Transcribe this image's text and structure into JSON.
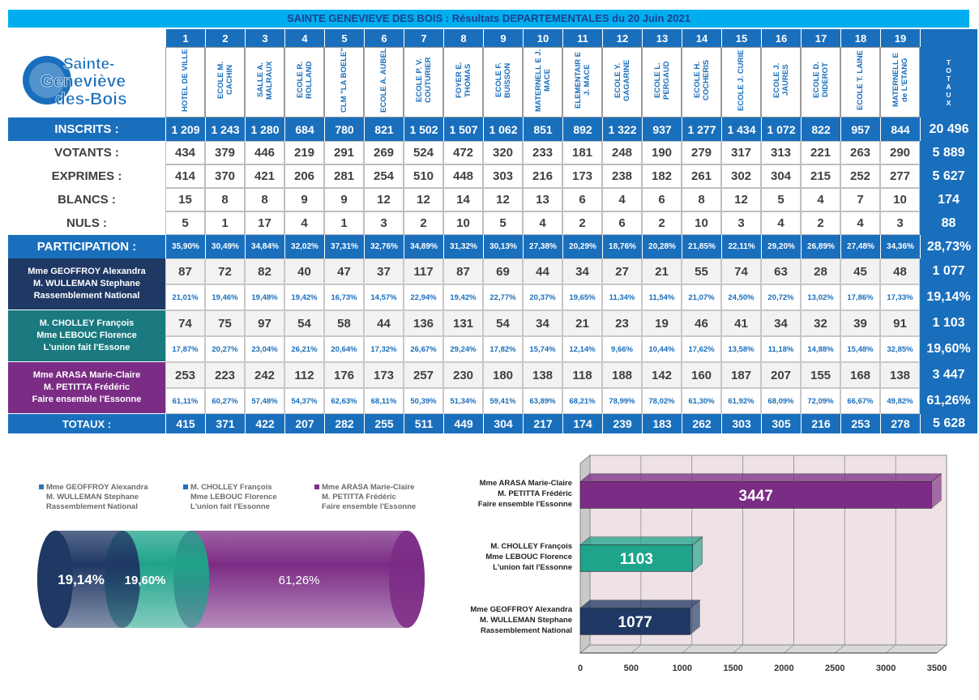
{
  "title": "SAINTE GENEVIEVE DES BOIS : Résultats DEPARTEMENTALES du 20 Juin 2021",
  "logo": {
    "line1": "Sainte-",
    "line2": "Geneviève",
    "line3": "des-Bois"
  },
  "numbers": [
    "1",
    "2",
    "3",
    "4",
    "5",
    "6",
    "7",
    "8",
    "9",
    "10",
    "11",
    "12",
    "13",
    "14",
    "15",
    "16",
    "17",
    "18",
    "19"
  ],
  "bureaux": [
    "HOTEL DE VILLE",
    "ECOLE M. CACHIN",
    "SALLE A. MALRAUX",
    "ECOLE R. ROLLAND",
    "CLM \"LA BOELE\"",
    "ECOLE A. AUBEL",
    "ECOLE P. V. COUTURIER",
    "FOYER E. THOMAS",
    "ECOLE F. BUISSON",
    "MATERNELL E J. MACE",
    "ELEMENTAIR E J. MACE",
    "ECOLE Y. GAGARINE",
    "ECOLE L. PERGAUD",
    "ECOLE H. COCHERIS",
    "ECOLE J. CURIE",
    "ECOLE J. JAURES",
    "ECOLE D. DIDEROT",
    "ECOLE T. LAINE",
    "MATERNELL E de L'ETANG"
  ],
  "totaux_header": "TOTAUX",
  "rows": {
    "inscrits": {
      "label": "INSCRITS :",
      "values": [
        "1 209",
        "1 243",
        "1 280",
        "684",
        "780",
        "821",
        "1 502",
        "1 507",
        "1 062",
        "851",
        "892",
        "1 322",
        "937",
        "1 277",
        "1 434",
        "1 072",
        "822",
        "957",
        "844"
      ],
      "total": "20 496"
    },
    "votants": {
      "label": "VOTANTS :",
      "values": [
        "434",
        "379",
        "446",
        "219",
        "291",
        "269",
        "524",
        "472",
        "320",
        "233",
        "181",
        "248",
        "190",
        "279",
        "317",
        "313",
        "221",
        "263",
        "290"
      ],
      "total": "5 889"
    },
    "exprimes": {
      "label": "EXPRIMES :",
      "values": [
        "414",
        "370",
        "421",
        "206",
        "281",
        "254",
        "510",
        "448",
        "303",
        "216",
        "173",
        "238",
        "182",
        "261",
        "302",
        "304",
        "215",
        "252",
        "277"
      ],
      "total": "5 627"
    },
    "blancs": {
      "label": "BLANCS :",
      "values": [
        "15",
        "8",
        "8",
        "9",
        "9",
        "12",
        "12",
        "14",
        "12",
        "13",
        "6",
        "4",
        "6",
        "8",
        "12",
        "5",
        "4",
        "7",
        "10"
      ],
      "total": "174"
    },
    "nuls": {
      "label": "NULS :",
      "values": [
        "5",
        "1",
        "17",
        "4",
        "1",
        "3",
        "2",
        "10",
        "5",
        "4",
        "2",
        "6",
        "2",
        "10",
        "3",
        "4",
        "2",
        "4",
        "3"
      ],
      "total": "88"
    },
    "participation": {
      "label": "PARTICIPATION :",
      "values": [
        "35,90%",
        "30,49%",
        "34,84%",
        "32,02%",
        "37,31%",
        "32,76%",
        "34,89%",
        "31,32%",
        "30,13%",
        "27,38%",
        "20,29%",
        "18,76%",
        "20,28%",
        "21,85%",
        "22,11%",
        "29,20%",
        "26,89%",
        "27,48%",
        "34,36%"
      ],
      "total": "28,73%"
    }
  },
  "candidates": [
    {
      "line1": "Mme GEOFFROY Alexandra",
      "line2": "M. WULLEMAN Stephane",
      "line3": "Rassemblement National",
      "votes": [
        "87",
        "72",
        "82",
        "40",
        "47",
        "37",
        "117",
        "87",
        "69",
        "44",
        "34",
        "27",
        "21",
        "55",
        "74",
        "63",
        "28",
        "45",
        "48"
      ],
      "total": "1 077",
      "pcts": [
        "21,01%",
        "19,46%",
        "19,48%",
        "19,42%",
        "16,73%",
        "14,57%",
        "22,94%",
        "19,42%",
        "22,77%",
        "20,37%",
        "19,65%",
        "11,34%",
        "11,54%",
        "21,07%",
        "24,50%",
        "20,72%",
        "13,02%",
        "17,86%",
        "17,33%"
      ],
      "total_pct": "19,14%",
      "color": "#1f3864"
    },
    {
      "line1": "M. CHOLLEY François",
      "line2": "Mme LEBOUC Florence",
      "line3": "L'union fait l'Essone",
      "votes": [
        "74",
        "75",
        "97",
        "54",
        "58",
        "44",
        "136",
        "131",
        "54",
        "34",
        "21",
        "23",
        "19",
        "46",
        "41",
        "34",
        "32",
        "39",
        "91"
      ],
      "total": "1 103",
      "pcts": [
        "17,87%",
        "20,27%",
        "23,04%",
        "26,21%",
        "20,64%",
        "17,32%",
        "26,67%",
        "29,24%",
        "17,82%",
        "15,74%",
        "12,14%",
        "9,66%",
        "10,44%",
        "17,62%",
        "13,58%",
        "11,18%",
        "14,88%",
        "15,48%",
        "32,85%"
      ],
      "total_pct": "19,60%",
      "color": "#1a7a80"
    },
    {
      "line1": "Mme ARASA Marie-Claire",
      "line2": "M. PETITTA Frédéric",
      "line3": "Faire ensemble l'Essonne",
      "votes": [
        "253",
        "223",
        "242",
        "112",
        "176",
        "173",
        "257",
        "230",
        "180",
        "138",
        "118",
        "188",
        "142",
        "160",
        "187",
        "207",
        "155",
        "168",
        "138"
      ],
      "total": "3 447",
      "pcts": [
        "61,11%",
        "60,27%",
        "57,48%",
        "54,37%",
        "62,63%",
        "68,11%",
        "50,39%",
        "51,34%",
        "59,41%",
        "63,89%",
        "68,21%",
        "78,99%",
        "78,02%",
        "61,30%",
        "61,92%",
        "68,09%",
        "72,09%",
        "66,67%",
        "49,82%"
      ],
      "total_pct": "61,26%",
      "color": "#7b2c85"
    }
  ],
  "totaux_row": {
    "label": "TOTAUX :",
    "values": [
      "415",
      "371",
      "422",
      "207",
      "282",
      "255",
      "511",
      "449",
      "304",
      "217",
      "174",
      "239",
      "183",
      "262",
      "303",
      "305",
      "216",
      "253",
      "278"
    ],
    "total": "5 628"
  },
  "legend": [
    {
      "line1": "Mme GEOFFROY Alexandra",
      "line2": "M. WULLEMAN Stephane",
      "line3": "Rassemblement National",
      "color": "#2e75b6"
    },
    {
      "line1": "M. CHOLLEY François",
      "line2": "Mme LEBOUC Florence",
      "line3": "L'union fait l'Essonne",
      "color": "#1a6fbd"
    },
    {
      "line1": "Mme ARASA Marie-Claire",
      "line2": "M. PETITTA Frédéric",
      "line3": "Faire ensemble l'Essonne",
      "color": "#7b2c85"
    }
  ],
  "chart_data": [
    {
      "type": "bar",
      "orientation": "horizontal-stacked-100",
      "categories": [
        "Rassemblement National",
        "L'union fait l'Essonne",
        "Faire ensemble l'Essonne"
      ],
      "values": [
        19.14,
        19.6,
        61.26
      ],
      "labels": [
        "19,14%",
        "19,60%",
        "61,26%"
      ],
      "colors": [
        "#1f3864",
        "#1fa38a",
        "#7b2c85"
      ]
    },
    {
      "type": "bar",
      "orientation": "horizontal",
      "categories": [
        {
          "line1": "Mme GEOFFROY Alexandra",
          "line2": "M. WULLEMAN Stephane",
          "line3": "Rassemblement National"
        },
        {
          "line1": "M. CHOLLEY François",
          "line2": "Mme LEBOUC Florence",
          "line3": "L'union fait l'Essonne"
        },
        {
          "line1": "Mme ARASA Marie-Claire",
          "line2": "M. PETITTA Frédéric",
          "line3": "Faire ensemble l'Essonne"
        }
      ],
      "values": [
        1077,
        1103,
        3447
      ],
      "colors": [
        "#1f3864",
        "#1fa38a",
        "#7b2c85"
      ],
      "xlim": [
        0,
        3500
      ],
      "xticks": [
        "0",
        "500",
        "1000",
        "1500",
        "2000",
        "2500",
        "3000",
        "3500"
      ],
      "grid": true
    }
  ]
}
